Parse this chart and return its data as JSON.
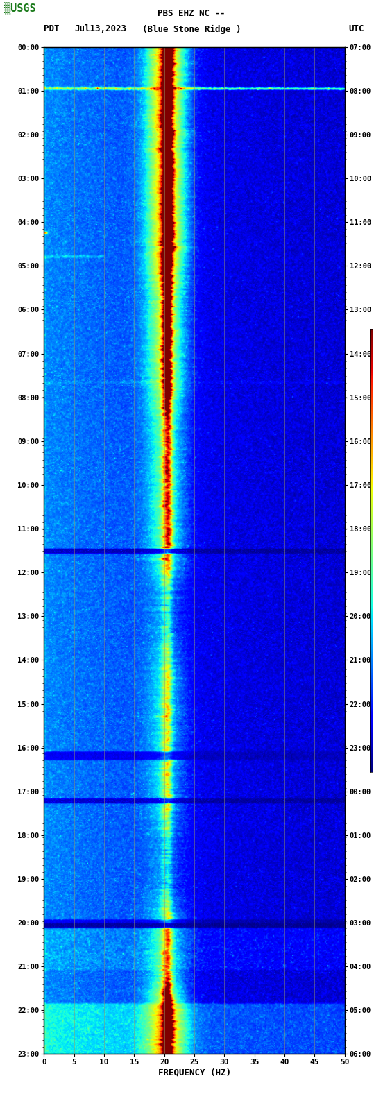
{
  "title_line1": "PBS EHZ NC --",
  "title_line2": "(Blue Stone Ridge )",
  "left_label": "PDT",
  "right_label": "UTC",
  "date_label": "Jul13,2023",
  "xlabel": "FREQUENCY (HZ)",
  "freq_min": 0,
  "freq_max": 50,
  "freq_ticks": [
    0,
    5,
    10,
    15,
    20,
    25,
    30,
    35,
    40,
    45,
    50
  ],
  "time_ticks_left": [
    "00:00",
    "01:00",
    "02:00",
    "03:00",
    "04:00",
    "05:00",
    "06:00",
    "07:00",
    "08:00",
    "09:00",
    "10:00",
    "11:00",
    "12:00",
    "13:00",
    "14:00",
    "15:00",
    "16:00",
    "17:00",
    "18:00",
    "19:00",
    "20:00",
    "21:00",
    "22:00",
    "23:00"
  ],
  "time_ticks_right": [
    "07:00",
    "08:00",
    "09:00",
    "10:00",
    "11:00",
    "12:00",
    "13:00",
    "14:00",
    "15:00",
    "16:00",
    "17:00",
    "18:00",
    "19:00",
    "20:00",
    "21:00",
    "22:00",
    "23:00",
    "00:00",
    "01:00",
    "02:00",
    "03:00",
    "04:00",
    "05:00",
    "06:00"
  ],
  "dominant_freq_hz": 20.5,
  "n_time_bins": 1440,
  "n_freq_bins": 400,
  "grid_freqs": [
    5,
    10,
    15,
    20,
    25,
    30,
    35,
    40,
    45
  ],
  "colormap": "jet",
  "vmin": 0.0,
  "vmax": 2.5
}
